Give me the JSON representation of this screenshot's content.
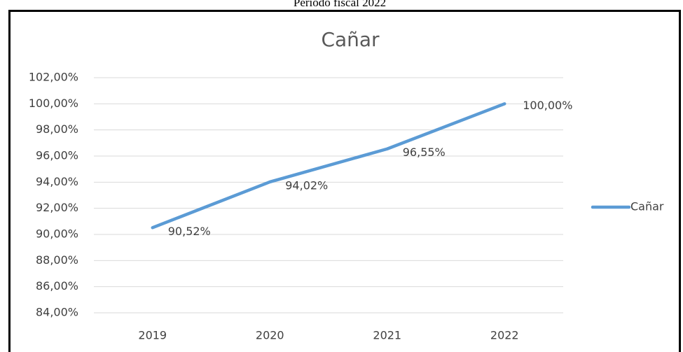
{
  "caption": "Período fiscal 2022",
  "chart_data": {
    "type": "line",
    "title": "Cañar",
    "categories": [
      "2019",
      "2020",
      "2021",
      "2022"
    ],
    "series": [
      {
        "name": "Cañar",
        "color": "#5b9bd5",
        "values": [
          90.52,
          94.02,
          96.55,
          100.0
        ],
        "value_labels": [
          "90,52%",
          "94,02%",
          "96,55%",
          "100,00%"
        ]
      }
    ],
    "ylim": [
      84,
      102
    ],
    "yticks": [
      {
        "value": 84,
        "label": "84,00%"
      },
      {
        "value": 86,
        "label": "86,00%"
      },
      {
        "value": 88,
        "label": "88,00%"
      },
      {
        "value": 90,
        "label": "90,00%"
      },
      {
        "value": 92,
        "label": "92,00%"
      },
      {
        "value": 94,
        "label": "94,00%"
      },
      {
        "value": 96,
        "label": "96,00%"
      },
      {
        "value": 98,
        "label": "98,00%"
      },
      {
        "value": 100,
        "label": "100,00%"
      },
      {
        "value": 102,
        "label": "102,00%"
      }
    ],
    "grid": true,
    "legend": "right"
  }
}
